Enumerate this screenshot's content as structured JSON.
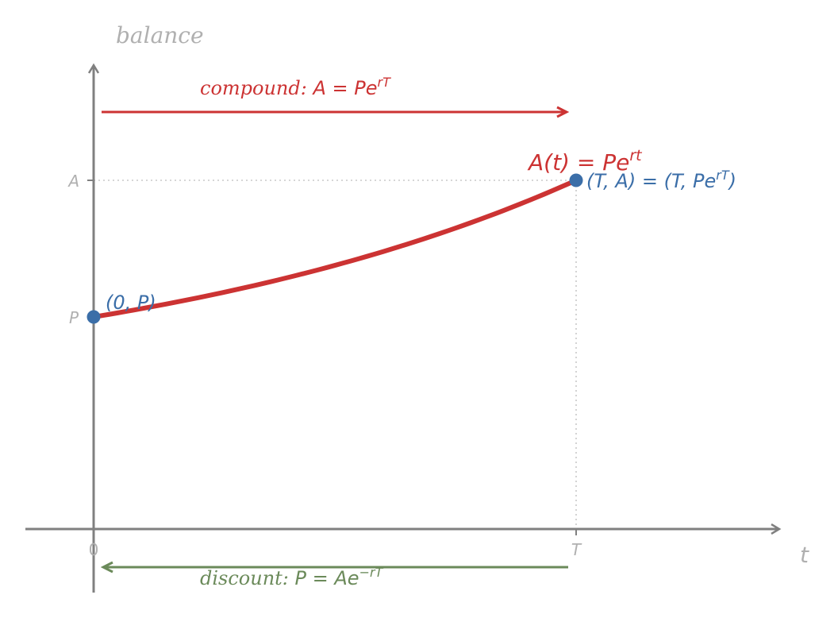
{
  "colors": {
    "axis": "#808080",
    "axis_label": "#b0b0b0",
    "guide": "#c8c8c8",
    "curve": "#cc3333",
    "point": "#3b6ea8",
    "compound": "#cc3333",
    "discount": "#6b8a5a"
  },
  "axes": {
    "y_label": "balance",
    "x_label": "t"
  },
  "ticks": {
    "x_zero": "0",
    "x_T": "T",
    "y_P": "P",
    "y_A": "A"
  },
  "compound": {
    "prefix": "compound: ",
    "lhs": "A",
    "eq": " = ",
    "base": "Pe",
    "exp": "rT"
  },
  "discount": {
    "prefix": "discount: ",
    "lhs": "P",
    "eq": " = ",
    "base": "Ae",
    "exp": "−rT"
  },
  "curve_label": {
    "lhs": "A(t)",
    "eq": " = ",
    "base": "Pe",
    "exp": "rt"
  },
  "point_start": {
    "label": "(0, P)"
  },
  "point_end": {
    "label_main": "(T, A) = (T, Pe",
    "exp": "rT",
    "close": ")"
  },
  "chart_data": {
    "type": "line",
    "model": "A(t) = P·e^(r·t)",
    "points": [
      {
        "x": "0",
        "y": "P"
      },
      {
        "x": "T",
        "y": "A"
      }
    ]
  }
}
